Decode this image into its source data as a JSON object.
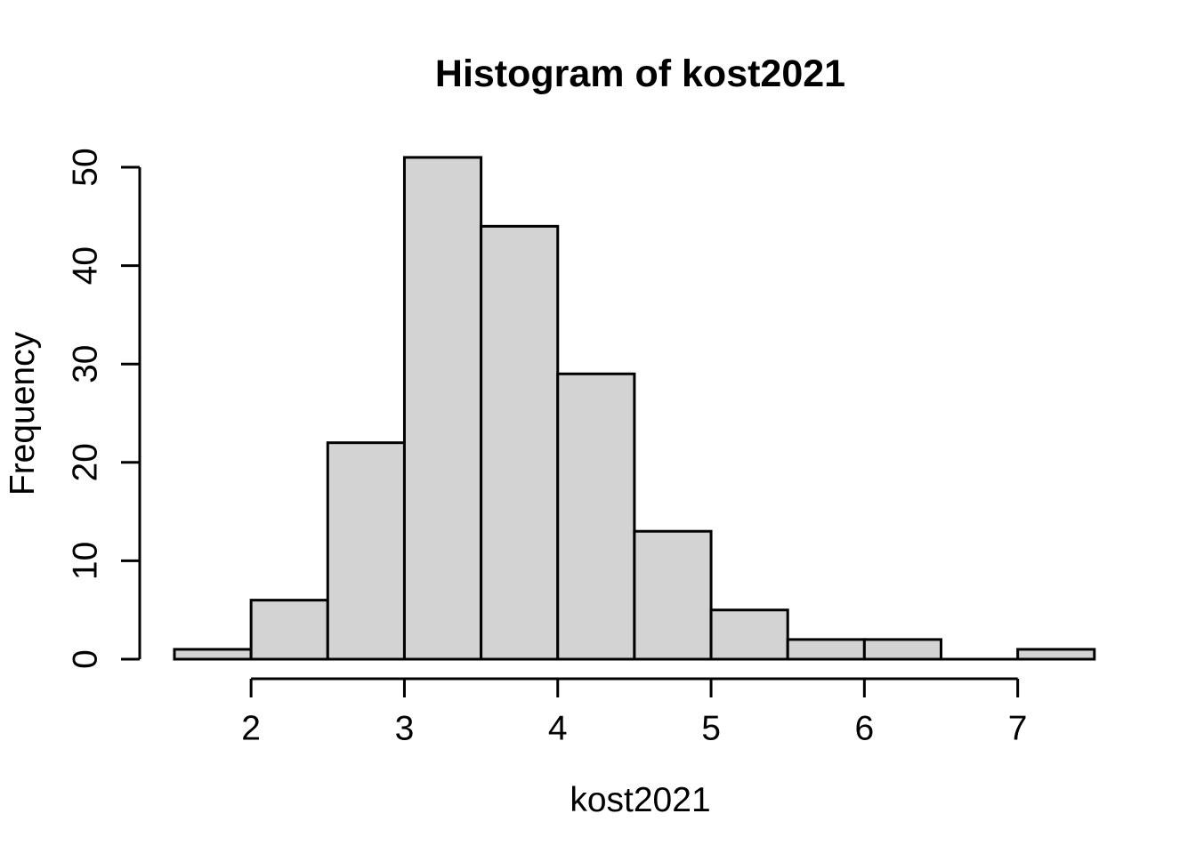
{
  "title": "Histogram of kost2021",
  "x_axis": {
    "label": "kost2021"
  },
  "y_axis": {
    "label": "Frequency"
  },
  "chart_data": {
    "type": "bar",
    "subtype": "histogram",
    "title": "Histogram of kost2021",
    "xlabel": "kost2021",
    "ylabel": "Frequency",
    "bin_edges": [
      1.5,
      2.0,
      2.5,
      3.0,
      3.5,
      4.0,
      4.5,
      5.0,
      5.5,
      6.0,
      6.5,
      7.0,
      7.5
    ],
    "counts": [
      1,
      6,
      22,
      51,
      44,
      29,
      13,
      5,
      2,
      2,
      0,
      1
    ],
    "x_ticks": [
      2,
      3,
      4,
      5,
      6,
      7
    ],
    "y_ticks": [
      0,
      10,
      20,
      30,
      40,
      50
    ],
    "xlim": [
      1.5,
      7.5
    ],
    "ylim": [
      0,
      51
    ],
    "grid": false,
    "legend": false,
    "bar_fill": "#D3D3D3",
    "bar_stroke": "#000000",
    "axis_color": "#000000",
    "background": "#FFFFFF"
  }
}
